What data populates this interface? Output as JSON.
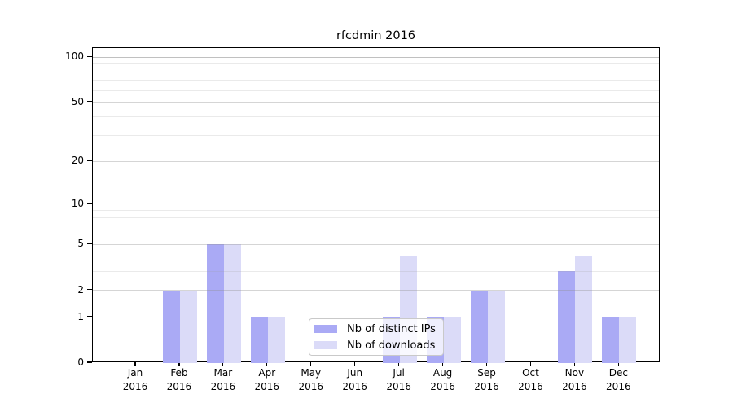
{
  "figure": {
    "title": "rfcdmin 2016"
  },
  "chart_data": {
    "type": "bar",
    "title": "rfcdmin 2016",
    "xlabel": "",
    "ylabel": "",
    "x_categories": [
      "Jan",
      "Feb",
      "Mar",
      "Apr",
      "May",
      "Jun",
      "Jul",
      "Aug",
      "Sep",
      "Oct",
      "Nov",
      "Dec"
    ],
    "x_year_label": "2016",
    "series": [
      {
        "name": "Nb of distinct IPs",
        "color": "#aaaaf5",
        "values": [
          0,
          2,
          5,
          1,
          0,
          0,
          1,
          1,
          2,
          0,
          3,
          1
        ]
      },
      {
        "name": "Nb of downloads",
        "color": "#dbdbf8",
        "values": [
          0,
          2,
          5,
          1,
          0,
          0,
          4,
          1,
          2,
          0,
          4,
          1
        ]
      }
    ],
    "yscale": "log1p",
    "ylim": [
      0,
      115
    ],
    "y_ticks": [
      0,
      1,
      2,
      5,
      10,
      20,
      50,
      100
    ],
    "grid": {
      "on": true,
      "decade_lines": [
        1,
        10,
        100
      ],
      "mid_lines": [
        2,
        5,
        20,
        50
      ],
      "minor_lines": [
        3,
        4,
        6,
        7,
        8,
        9,
        30,
        40,
        60,
        70,
        80,
        90
      ]
    },
    "legend": {
      "position": "lower center",
      "labels": [
        "Nb of distinct IPs",
        "Nb of downloads"
      ]
    }
  }
}
